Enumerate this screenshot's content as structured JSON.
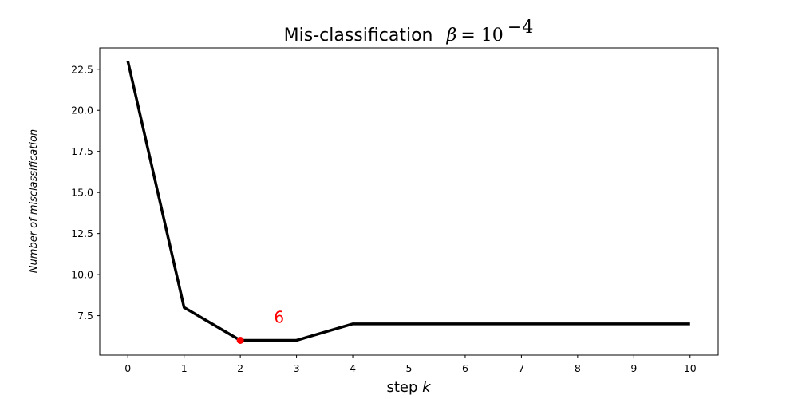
{
  "chart_data": {
    "type": "line",
    "title": {
      "prefix": "Mis-classification",
      "beta_symbol": "β",
      "equals_base": " = 10",
      "exponent": "−4"
    },
    "xlabel": {
      "prefix": "step ",
      "var": "k"
    },
    "ylabel": "Number of misclassification",
    "x": [
      0,
      1,
      2,
      3,
      4,
      5,
      6,
      7,
      8,
      9,
      10
    ],
    "series": [
      {
        "values": [
          23,
          8,
          6,
          6,
          7,
          7,
          7,
          7,
          7,
          7,
          7
        ],
        "color": "#000000"
      }
    ],
    "highlight": {
      "x": 2,
      "y": 6,
      "color": "#ff0000"
    },
    "annotation": {
      "text": "6",
      "x": 2.6,
      "y": 7.4,
      "color": "#ff0000"
    },
    "xlim": [
      -0.5,
      10.5
    ],
    "ylim": [
      5.1,
      23.8
    ],
    "xticks": [
      0,
      1,
      2,
      3,
      4,
      5,
      6,
      7,
      8,
      9,
      10
    ],
    "xtick_labels": [
      "0",
      "1",
      "2",
      "3",
      "4",
      "5",
      "6",
      "7",
      "8",
      "9",
      "10"
    ],
    "yticks": [
      7.5,
      10.0,
      12.5,
      15.0,
      17.5,
      20.0,
      22.5
    ],
    "ytick_labels": [
      "7.5",
      "10.0",
      "12.5",
      "15.0",
      "17.5",
      "20.0",
      "22.5"
    ],
    "grid": false
  }
}
